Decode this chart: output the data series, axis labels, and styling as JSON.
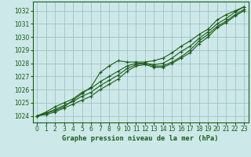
{
  "title": "Graphe pression niveau de la mer (hPa)",
  "bg_color": "#cce8e8",
  "grid_color": "#99bbbb",
  "line_color": "#1a5c1a",
  "border_color": "#1a5c1a",
  "xlim": [
    -0.5,
    23.5
  ],
  "ylim": [
    1023.5,
    1032.7
  ],
  "xticks": [
    0,
    1,
    2,
    3,
    4,
    5,
    6,
    7,
    8,
    9,
    10,
    11,
    12,
    13,
    14,
    15,
    16,
    17,
    18,
    19,
    20,
    21,
    22,
    23
  ],
  "yticks": [
    1024,
    1025,
    1026,
    1027,
    1028,
    1029,
    1030,
    1031,
    1032
  ],
  "hours": [
    0,
    1,
    2,
    3,
    4,
    5,
    6,
    7,
    8,
    9,
    10,
    11,
    12,
    13,
    14,
    15,
    16,
    17,
    18,
    19,
    20,
    21,
    22,
    23
  ],
  "series": [
    [
      1024.0,
      1024.3,
      1024.7,
      1025.0,
      1025.3,
      1025.8,
      1026.1,
      1026.6,
      1027.0,
      1027.4,
      1027.8,
      1028.0,
      1028.0,
      1027.9,
      1028.0,
      1028.4,
      1028.9,
      1029.3,
      1029.9,
      1030.4,
      1031.0,
      1031.4,
      1031.9,
      1032.3
    ],
    [
      1024.0,
      1024.2,
      1024.5,
      1024.8,
      1025.1,
      1025.5,
      1025.8,
      1026.3,
      1026.7,
      1027.1,
      1027.6,
      1027.9,
      1028.0,
      1027.8,
      1027.8,
      1028.1,
      1028.5,
      1029.0,
      1029.7,
      1030.2,
      1030.8,
      1031.2,
      1031.7,
      1032.1
    ],
    [
      1024.0,
      1024.1,
      1024.3,
      1024.6,
      1024.9,
      1025.2,
      1025.5,
      1026.0,
      1026.4,
      1026.8,
      1027.4,
      1027.8,
      1027.9,
      1027.7,
      1027.7,
      1028.0,
      1028.4,
      1028.8,
      1029.5,
      1030.0,
      1030.7,
      1031.1,
      1031.6,
      1032.0
    ],
    [
      1024.0,
      1024.2,
      1024.4,
      1024.7,
      1025.2,
      1025.7,
      1026.2,
      1027.3,
      1027.8,
      1028.2,
      1028.1,
      1028.1,
      1028.1,
      1028.2,
      1028.4,
      1028.8,
      1029.3,
      1029.7,
      1030.2,
      1030.6,
      1031.3,
      1031.7,
      1032.0,
      1032.3
    ]
  ],
  "marker_styles": [
    "+",
    "+",
    "+",
    "+"
  ],
  "marker_sizes": [
    3.5,
    3.5,
    3.5,
    3.5
  ],
  "linewidths": [
    0.8,
    0.8,
    0.8,
    0.8
  ],
  "tick_fontsize": 5.5,
  "xlabel_fontsize": 6.2
}
